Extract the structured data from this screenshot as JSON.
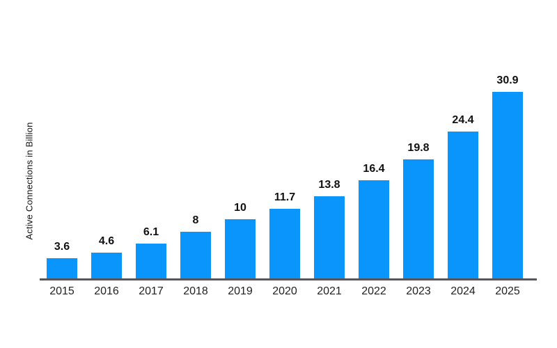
{
  "page": {
    "background": "#ffffff"
  },
  "chart_data": {
    "type": "bar",
    "title": "",
    "xlabel": "",
    "ylabel": "Active Connections in Billion",
    "categories": [
      "2015",
      "2016",
      "2017",
      "2018",
      "2019",
      "2020",
      "2021",
      "2022",
      "2023",
      "2024",
      "2025"
    ],
    "values": [
      3.6,
      4.6,
      6.1,
      8,
      10,
      11.7,
      13.8,
      16.4,
      19.8,
      24.4,
      30.9
    ],
    "value_labels": [
      "3.6",
      "4.6",
      "6.1",
      "8",
      "10",
      "11.7",
      "13.8",
      "16.4",
      "19.8",
      "24.4",
      "30.9"
    ],
    "ylim": [
      0,
      33
    ],
    "grid": false,
    "legend": "none",
    "colors": {
      "bar": "#0995FB",
      "axis_line": "#54565A",
      "value_label": "#111111",
      "tick_label": "#222222",
      "ylabel": "#111111"
    }
  }
}
